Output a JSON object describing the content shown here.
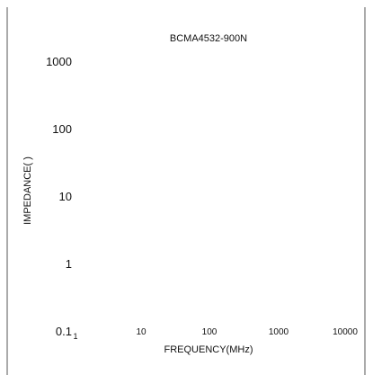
{
  "chart_data": {
    "type": "line",
    "title": "BCMA4532-900N",
    "xlabel": "FREQUENCY(MHz)",
    "ylabel": "IMPEDANCE(  )",
    "xscale": "log",
    "yscale": "log",
    "xlim": [
      1,
      10000
    ],
    "ylim": [
      0.1,
      1000
    ],
    "x_ticks": [
      "1",
      "10",
      "100",
      "1000",
      "10000"
    ],
    "y_ticks": [
      "1000",
      "100",
      "10",
      "1",
      "0.1"
    ],
    "grid": false,
    "series": []
  }
}
